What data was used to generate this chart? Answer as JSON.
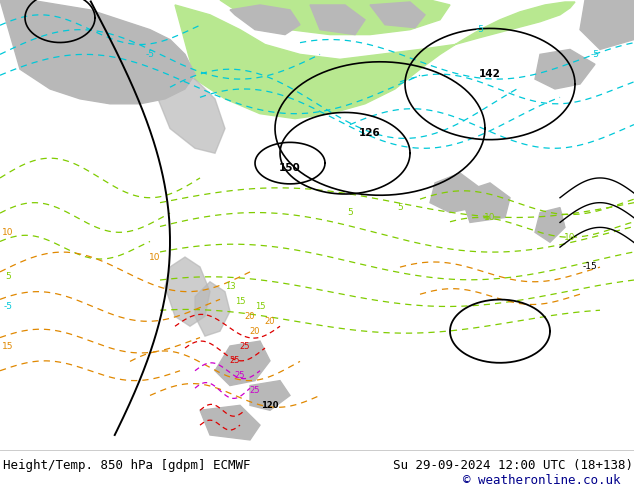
{
  "title_left": "Height/Temp. 850 hPa [gdpm] ECMWF",
  "title_right": "Su 29-09-2024 12:00 UTC (18+138)",
  "copyright": "© weatheronline.co.uk",
  "fig_width": 6.34,
  "fig_height": 4.9,
  "dpi": 100,
  "footer_bg": "#ffffff",
  "map_bg": "#f0f0f0",
  "ocean_color": "#f0f0f0",
  "land_color": "#b8b8b8",
  "green_color": "#b8e890",
  "font_family": "monospace",
  "text_fontsize": 9,
  "copyright_color": "#00008b",
  "footer_line_color": "#aaaaaa",
  "black_lw": 1.4,
  "thin_lw": 1.0
}
